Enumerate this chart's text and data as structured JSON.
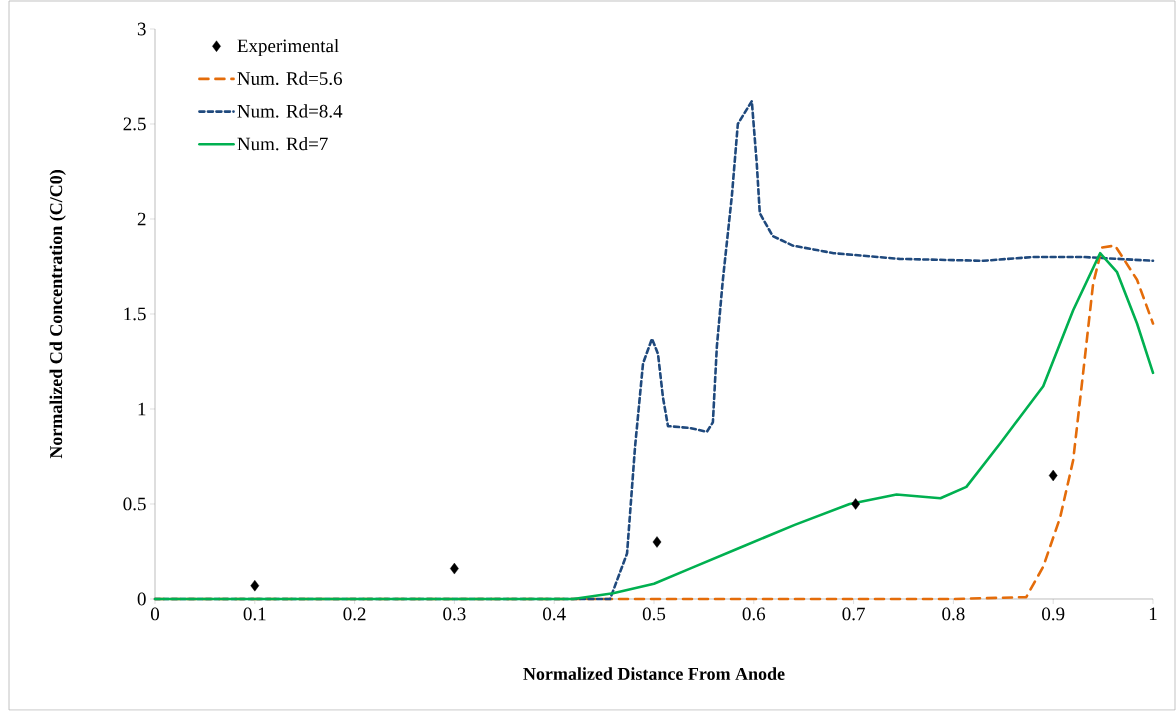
{
  "chart_data": {
    "type": "line",
    "xlabel": "Normalized Distance From Anode",
    "ylabel": "Normalized Cd Concentration (C/C0)",
    "xlim": [
      0,
      1
    ],
    "ylim": [
      0,
      3
    ],
    "xticks": [
      0,
      0.1,
      0.2,
      0.3,
      0.4,
      0.5,
      0.6,
      0.7,
      0.8,
      0.9,
      1
    ],
    "yticks": [
      0,
      0.5,
      1,
      1.5,
      2,
      2.5,
      3
    ],
    "grid": false,
    "legend": "top left",
    "series": [
      {
        "name": "Experimental",
        "type": "scatter",
        "marker": "diamond",
        "color": "#000000",
        "x": [
          0.1,
          0.3,
          0.503,
          0.702,
          0.9
        ],
        "values": [
          0.07,
          0.16,
          0.3,
          0.5,
          0.65
        ]
      },
      {
        "name": "Num. Rd=5.6",
        "line_style": "dashed",
        "color": "#e46c0a",
        "x": [
          0,
          0.2,
          0.4,
          0.6,
          0.8,
          0.873,
          0.89,
          0.907,
          0.92,
          0.93,
          0.94,
          0.949,
          0.962,
          0.984,
          1.0
        ],
        "values": [
          0,
          0,
          0,
          0,
          0,
          0.01,
          0.17,
          0.43,
          0.73,
          1.19,
          1.66,
          1.85,
          1.86,
          1.68,
          1.45
        ]
      },
      {
        "name": "Num. Rd=8.4",
        "line_style": "dotted",
        "color": "#1f497d",
        "x": [
          0,
          0.2,
          0.4,
          0.456,
          0.473,
          0.481,
          0.489,
          0.498,
          0.504,
          0.509,
          0.514,
          0.536,
          0.553,
          0.559,
          0.563,
          0.569,
          0.578,
          0.584,
          0.598,
          0.603,
          0.606,
          0.619,
          0.639,
          0.68,
          0.746,
          0.83,
          0.88,
          0.93,
          1.0
        ],
        "values": [
          0,
          0,
          0,
          0,
          0.24,
          0.8,
          1.24,
          1.37,
          1.29,
          1.06,
          0.91,
          0.9,
          0.88,
          0.93,
          1.33,
          1.68,
          2.12,
          2.5,
          2.62,
          2.29,
          2.03,
          1.91,
          1.86,
          1.82,
          1.79,
          1.78,
          1.8,
          1.8,
          1.78
        ]
      },
      {
        "name": "Num. Rd=7",
        "line_style": "solid",
        "color": "#00b050",
        "x": [
          0,
          0.2,
          0.419,
          0.459,
          0.5,
          0.536,
          0.586,
          0.641,
          0.696,
          0.743,
          0.787,
          0.813,
          0.847,
          0.89,
          0.92,
          0.947,
          0.964,
          0.984,
          1.0
        ],
        "values": [
          0,
          0,
          0,
          0.03,
          0.08,
          0.16,
          0.27,
          0.39,
          0.5,
          0.55,
          0.53,
          0.59,
          0.82,
          1.12,
          1.52,
          1.82,
          1.72,
          1.45,
          1.19
        ]
      }
    ]
  }
}
